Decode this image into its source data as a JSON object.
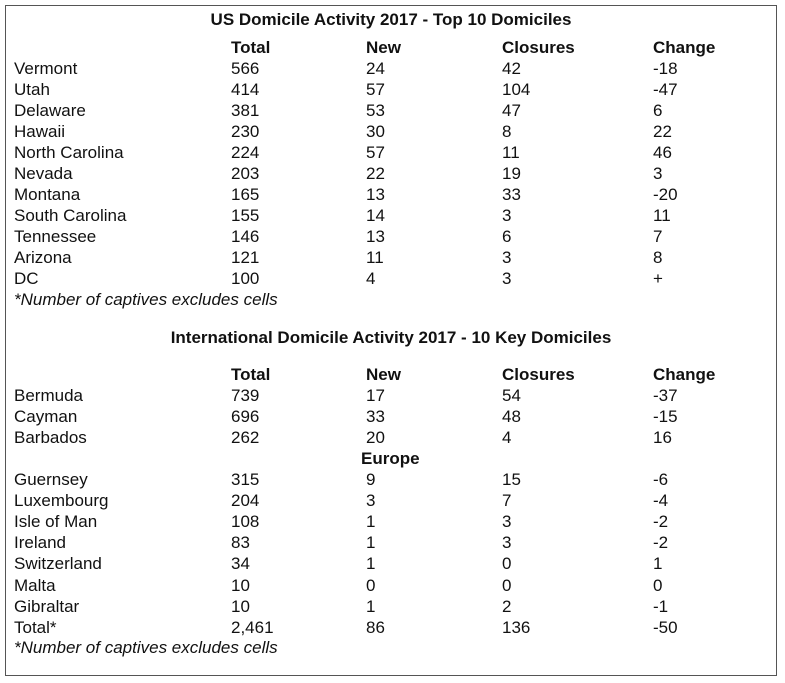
{
  "us": {
    "title": "US Domicile Activity 2017 - Top 10 Domiciles",
    "headers": [
      "",
      "Total",
      "New",
      "Closures",
      "Change"
    ],
    "rows": [
      [
        "Vermont",
        "566",
        "24",
        "42",
        "-18"
      ],
      [
        "Utah",
        "414",
        "57",
        "104",
        "-47"
      ],
      [
        "Delaware",
        "381",
        "53",
        "47",
        "6"
      ],
      [
        "Hawaii",
        "230",
        "30",
        "8",
        "22"
      ],
      [
        "North Carolina",
        "224",
        "57",
        "11",
        "46"
      ],
      [
        "Nevada",
        "203",
        "22",
        "19",
        "3"
      ],
      [
        "Montana",
        "165",
        "13",
        "33",
        "-20"
      ],
      [
        "South Carolina",
        "155",
        "14",
        "3",
        "11"
      ],
      [
        "Tennessee",
        "146",
        "13",
        "6",
        "7"
      ],
      [
        "Arizona",
        "121",
        "11",
        "3",
        "8"
      ],
      [
        "DC",
        "100",
        "4",
        "3",
        "+"
      ]
    ],
    "note": "*Number of captives excludes cells"
  },
  "intl": {
    "title": "International Domicile Activity 2017 - 10 Key Domiciles",
    "headers": [
      "",
      "Total",
      "New",
      "Closures",
      "Change"
    ],
    "rows_a": [
      [
        "Bermuda",
        "739",
        "17",
        "54",
        "-37"
      ],
      [
        "Cayman",
        "696",
        "33",
        "48",
        "-15"
      ],
      [
        "Barbados",
        "262",
        "20",
        "4",
        "16"
      ]
    ],
    "section_label": "Europe",
    "rows_b": [
      [
        "Guernsey",
        "315",
        "9",
        "15",
        "-6"
      ],
      [
        "Luxembourg",
        "204",
        "3",
        "7",
        "-4"
      ],
      [
        "Isle of Man",
        "108",
        "1",
        "3",
        "-2"
      ],
      [
        "Ireland",
        "83",
        "1",
        "3",
        "-2"
      ],
      [
        "Switzerland",
        "34",
        "1",
        "0",
        "1"
      ],
      [
        "Malta",
        "10",
        "0",
        "0",
        "0"
      ],
      [
        "Gibraltar",
        "10",
        "1",
        "2",
        "-1"
      ],
      [
        "Total*",
        "2,461",
        "86",
        "136",
        "-50"
      ]
    ],
    "note": "*Number of captives excludes cells"
  }
}
